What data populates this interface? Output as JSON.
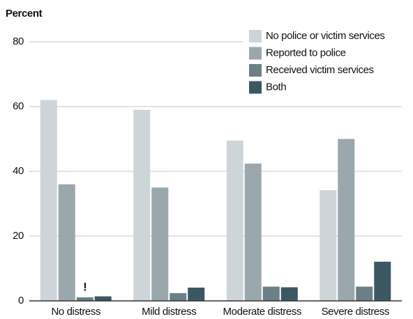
{
  "chart_data": {
    "type": "bar",
    "y_label": "Percent",
    "categories": [
      "No distress",
      "Mild distress",
      "Moderate distress",
      "Severe distress"
    ],
    "series": [
      {
        "name": "No police or victim services",
        "color": "#cdd5d8",
        "values": [
          62,
          59,
          49.5,
          34.2
        ]
      },
      {
        "name": "Reported to police",
        "color": "#9aa7ad",
        "values": [
          36,
          35,
          42.4,
          50
        ]
      },
      {
        "name": "Received victim services",
        "color": "#6b7f87",
        "values": [
          1.1,
          2.4,
          4.4,
          4.4
        ]
      },
      {
        "name": "Both",
        "color": "#3b5762",
        "values": [
          1.4,
          4.1,
          4.2,
          12.1
        ]
      }
    ],
    "annotation": "!",
    "ylim": [
      0,
      80
    ],
    "yticks": [
      0,
      20,
      40,
      60,
      80
    ],
    "grid": true,
    "legend": "top-right"
  }
}
